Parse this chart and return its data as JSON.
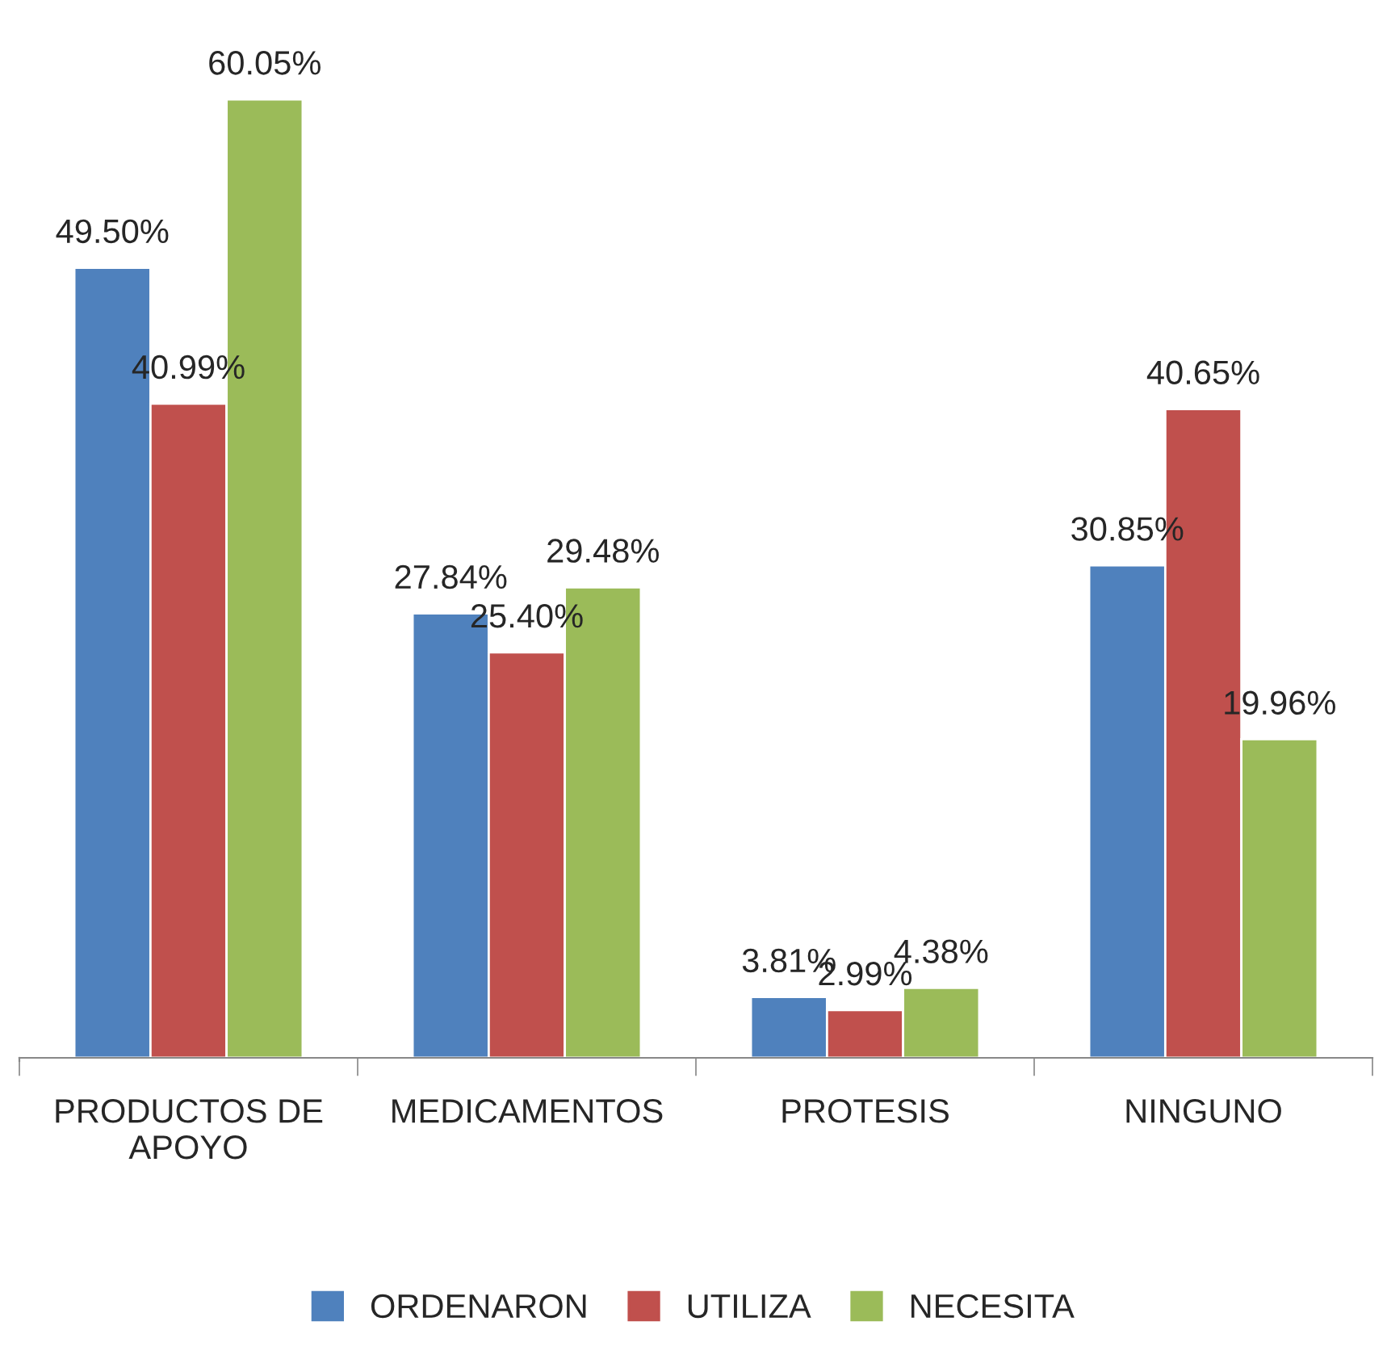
{
  "chart_data": {
    "type": "bar",
    "categories": [
      "PRODUCTOS DE\nAPOYO",
      "MEDICAMENTOS",
      "PROTESIS",
      "NINGUNO"
    ],
    "series": [
      {
        "name": "ORDENARON",
        "color": "#4f81bd",
        "values": [
          49.5,
          27.84,
          3.81,
          30.85
        ],
        "value_labels": [
          "49.50%",
          "27.84%",
          "3.81%",
          "30.85%"
        ]
      },
      {
        "name": "UTILIZA",
        "color": "#c0504d",
        "values": [
          40.99,
          25.4,
          2.99,
          40.65
        ],
        "value_labels": [
          "40.99%",
          "25.40%",
          "2.99%",
          "40.65%"
        ]
      },
      {
        "name": "NECESITA",
        "color": "#9bbb59",
        "values": [
          60.05,
          29.48,
          4.38,
          19.96
        ],
        "value_labels": [
          "60.05%",
          "29.48%",
          "4.38%",
          "19.96%"
        ]
      }
    ],
    "legend": "bottom",
    "grid": false
  }
}
